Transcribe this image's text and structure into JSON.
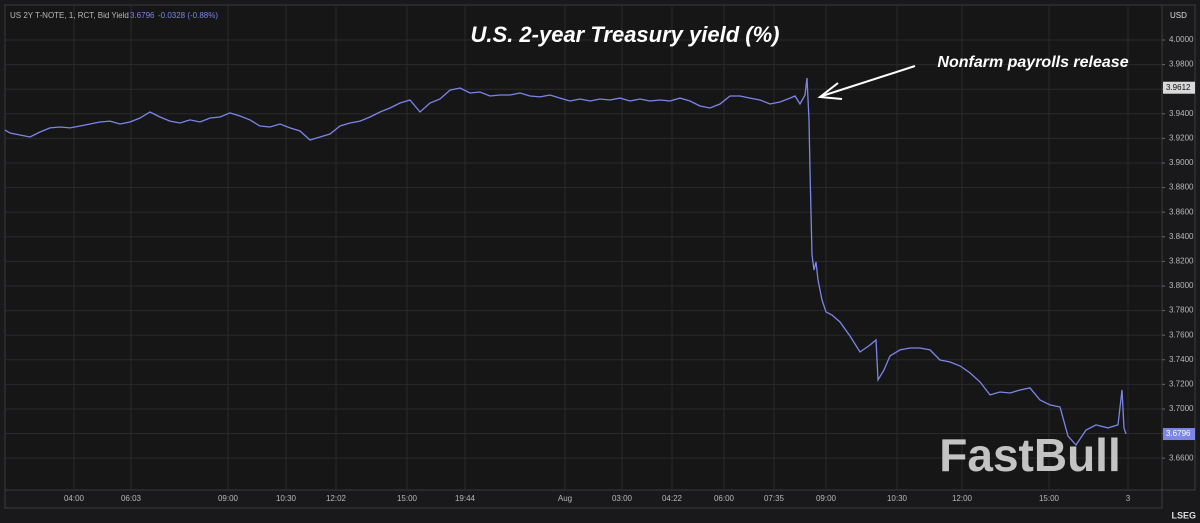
{
  "chart_data": {
    "type": "line",
    "title": "U.S. 2-year Treasury yield (%)",
    "header": {
      "symbol": "US 2Y T-NOTE, 1, RCT, Bid Yield",
      "last": "3.6796",
      "change": "-0.0328 (-0.88%)"
    },
    "y_axis_unit": "USD",
    "annotation": "Nonfarm payrolls release",
    "watermark": "FastBull",
    "source": "LSEG",
    "color": "#7b86e8",
    "grid": true,
    "price_labels": [
      {
        "value": 3.9612,
        "color": "#d9d9d9"
      },
      {
        "value": 3.6796,
        "color": "#7b86e8"
      }
    ],
    "x": [
      5,
      10,
      20,
      30,
      40,
      50,
      60,
      70,
      80,
      90,
      100,
      110,
      120,
      130,
      140,
      150,
      160,
      170,
      180,
      190,
      200,
      210,
      220,
      230,
      240,
      250,
      260,
      270,
      280,
      290,
      300,
      310,
      320,
      330,
      340,
      350,
      360,
      370,
      380,
      390,
      400,
      410,
      420,
      430,
      440,
      450,
      460,
      470,
      480,
      490,
      500,
      510,
      520,
      530,
      540,
      550,
      560,
      570,
      580,
      590,
      600,
      610,
      620,
      630,
      640,
      650,
      660,
      670,
      680,
      690,
      700,
      710,
      720,
      730,
      740,
      750,
      760,
      770,
      780,
      790,
      795,
      800,
      805,
      807,
      809,
      810,
      812,
      814,
      816,
      818,
      822,
      826,
      832,
      840,
      850,
      860,
      870,
      876,
      878,
      884,
      890,
      900,
      910,
      920,
      930,
      940,
      950,
      960,
      970,
      980,
      990,
      1000,
      1010,
      1020,
      1030,
      1040,
      1050,
      1060,
      1068,
      1076,
      1086,
      1096,
      1108,
      1118,
      1122,
      1124,
      1126
    ],
    "values": [
      3.9268,
      3.9244,
      3.9228,
      3.9211,
      3.9252,
      3.9285,
      3.9293,
      3.9285,
      3.9301,
      3.9317,
      3.9333,
      3.9341,
      3.9317,
      3.9333,
      3.9366,
      3.9415,
      3.9374,
      3.9341,
      3.9325,
      3.935,
      3.9333,
      3.9366,
      3.9374,
      3.9407,
      3.9382,
      3.935,
      3.9301,
      3.9293,
      3.9317,
      3.9285,
      3.926,
      3.9187,
      3.9211,
      3.9236,
      3.9301,
      3.9325,
      3.9341,
      3.9374,
      3.9415,
      3.9447,
      3.9488,
      3.9512,
      3.9415,
      3.9488,
      3.952,
      3.9593,
      3.961,
      3.9569,
      3.9577,
      3.9545,
      3.9553,
      3.9553,
      3.9569,
      3.9545,
      3.9537,
      3.9553,
      3.9528,
      3.9504,
      3.952,
      3.9504,
      3.952,
      3.9512,
      3.9528,
      3.9504,
      3.952,
      3.9504,
      3.9512,
      3.9504,
      3.9528,
      3.9504,
      3.9463,
      3.9447,
      3.948,
      3.9545,
      3.9545,
      3.9528,
      3.9512,
      3.948,
      3.9496,
      3.9528,
      3.9545,
      3.948,
      3.9553,
      3.9691,
      3.935,
      3.8943,
      3.8252,
      3.813,
      3.8195,
      3.8049,
      3.7886,
      3.7789,
      3.7764,
      3.7707,
      3.7593,
      3.7463,
      3.752,
      3.7561,
      3.7236,
      3.7317,
      3.7431,
      3.748,
      3.7496,
      3.7496,
      3.748,
      3.7398,
      3.7382,
      3.735,
      3.7293,
      3.722,
      3.7114,
      3.7138,
      3.713,
      3.7154,
      3.7171,
      3.7073,
      3.7033,
      3.7016,
      3.678,
      3.6707,
      3.6829,
      3.687,
      3.6846,
      3.687,
      3.7154,
      3.6846,
      3.6796
    ],
    "xlim": [
      5,
      1162
    ],
    "xticks": [
      {
        "value": 74,
        "label": "04:00"
      },
      {
        "value": 131,
        "label": "06:03"
      },
      {
        "value": 228,
        "label": "09:00"
      },
      {
        "value": 286,
        "label": "10:30"
      },
      {
        "value": 336,
        "label": "12:02"
      },
      {
        "value": 407,
        "label": "15:00"
      },
      {
        "value": 465,
        "label": "19:44"
      },
      {
        "value": 565,
        "label": "Aug"
      },
      {
        "value": 622,
        "label": "03:00"
      },
      {
        "value": 672,
        "label": "04:22"
      },
      {
        "value": 724,
        "label": "06:00"
      },
      {
        "value": 774,
        "label": "07:35"
      },
      {
        "value": 826,
        "label": "09:00"
      },
      {
        "value": 897,
        "label": "10:30"
      },
      {
        "value": 962,
        "label": "12:00"
      },
      {
        "value": 1049,
        "label": "15:00"
      },
      {
        "value": 1128,
        "label": "3"
      }
    ],
    "ylim": [
      3.6341,
      4.0244
    ],
    "yticks": [
      {
        "value": 4.0,
        "label": "4.0000"
      },
      {
        "value": 3.98,
        "label": "3.9800"
      },
      {
        "value": 3.96,
        "label": "3.9600"
      },
      {
        "value": 3.94,
        "label": "3.9400"
      },
      {
        "value": 3.92,
        "label": "3.9200"
      },
      {
        "value": 3.9,
        "label": "3.9000"
      },
      {
        "value": 3.88,
        "label": "3.8800"
      },
      {
        "value": 3.86,
        "label": "3.8600"
      },
      {
        "value": 3.84,
        "label": "3.8400"
      },
      {
        "value": 3.82,
        "label": "3.8200"
      },
      {
        "value": 3.8,
        "label": "3.8000"
      },
      {
        "value": 3.78,
        "label": "3.7800"
      },
      {
        "value": 3.76,
        "label": "3.7600"
      },
      {
        "value": 3.74,
        "label": "3.7400"
      },
      {
        "value": 3.72,
        "label": "3.7200"
      },
      {
        "value": 3.7,
        "label": "3.7000"
      },
      {
        "value": 3.68,
        "label": "3.6800"
      },
      {
        "value": 3.66,
        "label": "3.6600"
      }
    ]
  }
}
